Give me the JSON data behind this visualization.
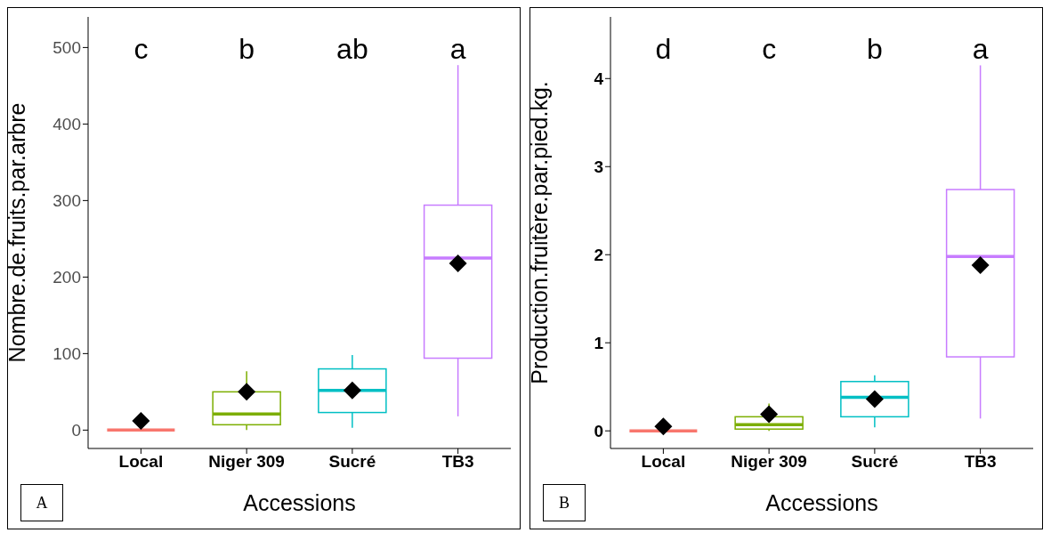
{
  "chart_data": [
    {
      "type": "box",
      "xlabel": "Accessions",
      "ylabel": "Nombre.de.fruits.par.arbre",
      "categories": [
        "Local",
        "Niger 309",
        "Sucré",
        "TB3"
      ],
      "colors": [
        "#f8766d",
        "#7cae00",
        "#00bfc4",
        "#c77cff"
      ],
      "boxes": [
        {
          "low": 0,
          "q1": 0,
          "median": 0,
          "q3": 0,
          "high": 0,
          "mean": 12
        },
        {
          "low": 0,
          "q1": 7,
          "median": 21,
          "q3": 50,
          "high": 77,
          "mean": 50
        },
        {
          "low": 3,
          "q1": 23,
          "median": 52,
          "q3": 80,
          "high": 98,
          "mean": 52
        },
        {
          "low": 18,
          "q1": 94,
          "median": 225,
          "q3": 294,
          "high": 477,
          "mean": 218
        }
      ],
      "ylim": [
        -24,
        540
      ],
      "yticks": [
        0,
        100,
        200,
        300,
        400,
        500
      ],
      "annotations": [
        "c",
        "b",
        "ab",
        "a",
        "A"
      ]
    },
    {
      "type": "box",
      "xlabel": "Accessions",
      "ylabel": "Production.fruitère.par.pied.kg.",
      "categories": [
        "Local",
        "Niger 309",
        "Sucré",
        "TB3"
      ],
      "colors": [
        "#f8766d",
        "#7cae00",
        "#00bfc4",
        "#c77cff"
      ],
      "boxes": [
        {
          "low": 0,
          "q1": 0,
          "median": 0,
          "q3": 0,
          "high": 0,
          "mean": 0.05
        },
        {
          "low": 0,
          "q1": 0.02,
          "median": 0.07,
          "q3": 0.16,
          "high": 0.31,
          "mean": 0.19
        },
        {
          "low": 0.04,
          "q1": 0.16,
          "median": 0.38,
          "q3": 0.56,
          "high": 0.63,
          "mean": 0.36
        },
        {
          "low": 0.14,
          "q1": 0.84,
          "median": 1.98,
          "q3": 2.74,
          "high": 4.15,
          "mean": 1.88
        }
      ],
      "ylim": [
        -0.2,
        4.7
      ],
      "yticks": [
        0,
        1,
        2,
        3,
        4
      ],
      "annotations": [
        "d",
        "c",
        "b",
        "a",
        "B"
      ]
    }
  ]
}
